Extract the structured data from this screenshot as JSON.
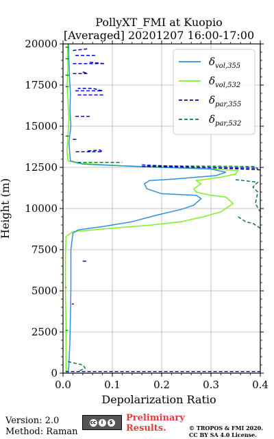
{
  "footer": {
    "version": "Version: 2.0",
    "method": "Method: Raman",
    "cc_badge": [
      "cc",
      "i",
      "$"
    ],
    "preliminary_line1": "Preliminary",
    "preliminary_line2": "Results.",
    "copyright_line1": "© TROPOS & FMI 2020.",
    "copyright_line2": "CC BY SA 4.0 License."
  },
  "chart_data": {
    "type": "line",
    "title": "PollyXT_FMI at Kuopio",
    "subtitle": "[Averaged] 20201207 16:00-17:00",
    "xlabel": "Depolarization Ratio",
    "ylabel": "Height (m)",
    "xlim": [
      0,
      0.4
    ],
    "ylim": [
      0,
      20000
    ],
    "xticks": [
      "0.0",
      "0.1",
      "0.2",
      "0.3",
      "0.4"
    ],
    "yticks": [
      "0",
      "2500",
      "5000",
      "7500",
      "10000",
      "12500",
      "15000",
      "17500",
      "20000"
    ],
    "grid": true,
    "legend_position": "top-right",
    "series": [
      {
        "name": "δvol,355",
        "legend_main": "δ",
        "legend_sub": "vol,355",
        "color": "#2c8fe3",
        "style": "solid",
        "points": [
          [
            0.01,
            0
          ],
          [
            0.012,
            500
          ],
          [
            0.014,
            2000
          ],
          [
            0.016,
            5000
          ],
          [
            0.016,
            7500
          ],
          [
            0.02,
            8500
          ],
          [
            0.03,
            8700
          ],
          [
            0.08,
            8900
          ],
          [
            0.14,
            9200
          ],
          [
            0.19,
            9600
          ],
          [
            0.24,
            9950
          ],
          [
            0.265,
            10200
          ],
          [
            0.28,
            10600
          ],
          [
            0.27,
            10800
          ],
          [
            0.2,
            10900
          ],
          [
            0.17,
            11200
          ],
          [
            0.165,
            11500
          ],
          [
            0.175,
            11700
          ],
          [
            0.23,
            11800
          ],
          [
            0.31,
            12000
          ],
          [
            0.33,
            12200
          ],
          [
            0.3,
            12400
          ],
          [
            0.15,
            12550
          ],
          [
            0.04,
            12700
          ],
          [
            0.015,
            12900
          ],
          [
            0.012,
            14000
          ],
          [
            0.016,
            15000
          ],
          [
            0.014,
            16000
          ],
          [
            0.015,
            17000
          ],
          [
            0.013,
            18000
          ],
          [
            0.012,
            19000
          ],
          [
            0.011,
            20000
          ]
        ]
      },
      {
        "name": "δvol,532",
        "legend_main": "δ",
        "legend_sub": "vol,532",
        "color": "#7ff01f",
        "style": "solid",
        "points": [
          [
            0.007,
            0
          ],
          [
            0.006,
            300
          ],
          [
            0.006,
            3000
          ],
          [
            0.005,
            5000
          ],
          [
            0.005,
            7000
          ],
          [
            0.006,
            8300
          ],
          [
            0.02,
            8600
          ],
          [
            0.1,
            8800
          ],
          [
            0.18,
            9000
          ],
          [
            0.24,
            9200
          ],
          [
            0.285,
            9500
          ],
          [
            0.32,
            9800
          ],
          [
            0.345,
            10300
          ],
          [
            0.33,
            10700
          ],
          [
            0.3,
            10800
          ],
          [
            0.27,
            11000
          ],
          [
            0.265,
            11200
          ],
          [
            0.28,
            11500
          ],
          [
            0.27,
            11700
          ],
          [
            0.32,
            11900
          ],
          [
            0.35,
            12100
          ],
          [
            0.355,
            12300
          ],
          [
            0.28,
            12450
          ],
          [
            0.12,
            12600
          ],
          [
            0.03,
            12750
          ],
          [
            0.01,
            12900
          ],
          [
            0.008,
            13500
          ],
          [
            0.01,
            14500
          ],
          [
            0.012,
            15500
          ],
          [
            0.01,
            16500
          ],
          [
            0.008,
            17500
          ],
          [
            0.01,
            18500
          ],
          [
            0.009,
            19500
          ],
          [
            0.01,
            20000
          ]
        ]
      },
      {
        "name": "δpar,355",
        "legend_main": "δ",
        "legend_sub": "par,355",
        "color": "#0000d0",
        "style": "dashed",
        "segments": [
          [
            [
              0.005,
              100
            ],
            [
              0.4,
              100
            ]
          ],
          [
            [
              0.04,
              6800
            ],
            [
              0.048,
              6800
            ]
          ],
          [
            [
              0.018,
              4200
            ],
            [
              0.022,
              4200
            ]
          ],
          [
            [
              0.026,
              13450
            ],
            [
              0.08,
              13450
            ],
            [
              0.075,
              13550
            ],
            [
              0.05,
              13500
            ]
          ],
          [
            [
              0.02,
              14200
            ],
            [
              0.03,
              14200
            ]
          ],
          [
            [
              0.025,
              15600
            ],
            [
              0.055,
              15600
            ]
          ],
          [
            [
              0.03,
              16900
            ],
            [
              0.085,
              16900
            ]
          ],
          [
            [
              0.025,
              17150
            ],
            [
              0.08,
              17150
            ],
            [
              0.06,
              17300
            ],
            [
              0.03,
              17300
            ]
          ],
          [
            [
              0.02,
              18200
            ],
            [
              0.05,
              18200
            ],
            [
              0.04,
              18300
            ]
          ],
          [
            [
              0.02,
              18800
            ],
            [
              0.085,
              18800
            ],
            [
              0.05,
              18900
            ]
          ],
          [
            [
              0.025,
              19300
            ],
            [
              0.065,
              19300
            ]
          ],
          [
            [
              0.02,
              19600
            ],
            [
              0.05,
              19700
            ]
          ],
          [
            [
              0.16,
              12650
            ],
            [
              0.4,
              12350
            ]
          ],
          [
            [
              0.16,
              12550
            ],
            [
              0.395,
              12450
            ]
          ]
        ]
      },
      {
        "name": "δpar,532",
        "legend_main": "δ",
        "legend_sub": "par,532",
        "color": "#0b7a30",
        "style": "dashed",
        "segments": [
          [
            [
              0.01,
              700
            ],
            [
              0.04,
              500
            ],
            [
              0.045,
              300
            ],
            [
              0.03,
              100
            ]
          ],
          [
            [
              0.005,
              2600
            ],
            [
              0.01,
              2600
            ]
          ],
          [
            [
              0.005,
              5200
            ],
            [
              0.007,
              5200
            ]
          ],
          [
            [
              0.03,
              12800
            ],
            [
              0.12,
              12800
            ]
          ],
          [
            [
              0.17,
              12600
            ],
            [
              0.39,
              12550
            ],
            [
              0.395,
              12350
            ]
          ],
          [
            [
              0.35,
              11750
            ],
            [
              0.395,
              11600
            ],
            [
              0.385,
              11300
            ],
            [
              0.395,
              11000
            ],
            [
              0.39,
              10300
            ],
            [
              0.4,
              9800
            ]
          ],
          [
            [
              0.355,
              9500
            ],
            [
              0.37,
              9200
            ],
            [
              0.385,
              9100
            ],
            [
              0.4,
              8800
            ]
          ],
          [
            [
              0.005,
              14400
            ],
            [
              0.012,
              14400
            ]
          ],
          [
            [
              0.005,
              17400
            ],
            [
              0.015,
              17400
            ]
          ],
          [
            [
              0.005,
              18100
            ],
            [
              0.012,
              18100
            ]
          ],
          [
            [
              0.005,
              19100
            ],
            [
              0.012,
              19100
            ]
          ],
          [
            [
              0.005,
              19800
            ],
            [
              0.012,
              19800
            ]
          ]
        ]
      }
    ]
  }
}
